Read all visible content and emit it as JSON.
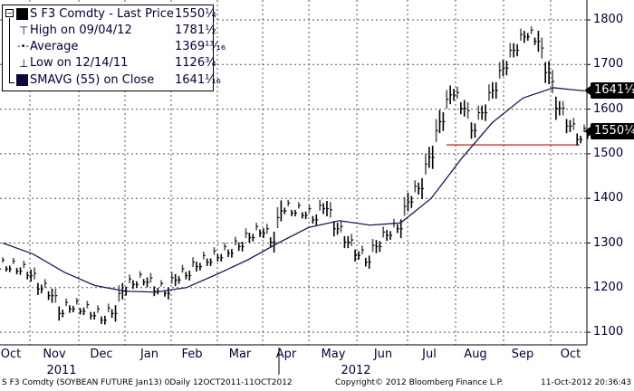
{
  "chart_data": {
    "type": "ohlc-line",
    "title": "S F3 Comdty - Last Price",
    "y_ticks": [
      1100,
      1200,
      1300,
      1400,
      1500,
      1600,
      1700,
      1800
    ],
    "ylim": [
      1080,
      1840
    ],
    "x_ticks": [
      "Oct",
      "Nov",
      "Dec",
      "Jan",
      "Feb",
      "Mar",
      "Apr",
      "May",
      "Jun",
      "Jul",
      "Aug",
      "Sep",
      "Oct"
    ],
    "years": [
      "2011",
      "2012"
    ],
    "price_series": {
      "name": "Last Price",
      "values": [
        1250,
        1245,
        1235,
        1205,
        1190,
        1150,
        1160,
        1155,
        1145,
        1135,
        1150,
        1200,
        1215,
        1220,
        1200,
        1195,
        1225,
        1235,
        1255,
        1265,
        1275,
        1285,
        1300,
        1320,
        1330,
        1310,
        1380,
        1375,
        1370,
        1360,
        1385,
        1340,
        1310,
        1280,
        1265,
        1300,
        1325,
        1340,
        1400,
        1430,
        1500,
        1580,
        1640,
        1610,
        1560,
        1600,
        1650,
        1700,
        1740,
        1770,
        1760,
        1690,
        1610,
        1570,
        1540,
        1550
      ]
    },
    "sma_series": {
      "name": "SMAVG (55) on Close",
      "values": [
        1300,
        1275,
        1235,
        1205,
        1192,
        1190,
        1200,
        1230,
        1262,
        1300,
        1335,
        1350,
        1340,
        1345,
        1400,
        1490,
        1570,
        1625,
        1648,
        1641
      ]
    },
    "support_level": 1520,
    "last_price_tag": "1550¼",
    "sma_tag": "1641¹⁄₁₆",
    "y_tick_labels": [
      "1100",
      "1200",
      "1300",
      "1400",
      "1500",
      "1600",
      "1700",
      "1800"
    ]
  },
  "legend": [
    {
      "label": "S F3 Comdty - Last Price",
      "value": "1550¼"
    },
    {
      "label": "High on 09/04/12",
      "value": "1781½"
    },
    {
      "label": "Average",
      "value": "1369¹³⁄₁₆"
    },
    {
      "label": "Low on 12/14/11",
      "value": "1126¾"
    },
    {
      "label": "SMAVG (55) on Close",
      "value": "1641¹⁄₁₆"
    }
  ],
  "footer": {
    "security": "S F3 Comdty (SOYBEAN FUTURE   Jan13) 0Daily 12OCT2011-11OCT2012",
    "copyright": "Copyright© 2012 Bloomberg Finance L.P.",
    "timestamp": "11-Oct-2012 20:36:43"
  },
  "colors": {
    "price": "#000000",
    "sma": "#1a1a55",
    "support": "#cc0000",
    "grid": "#555555"
  }
}
